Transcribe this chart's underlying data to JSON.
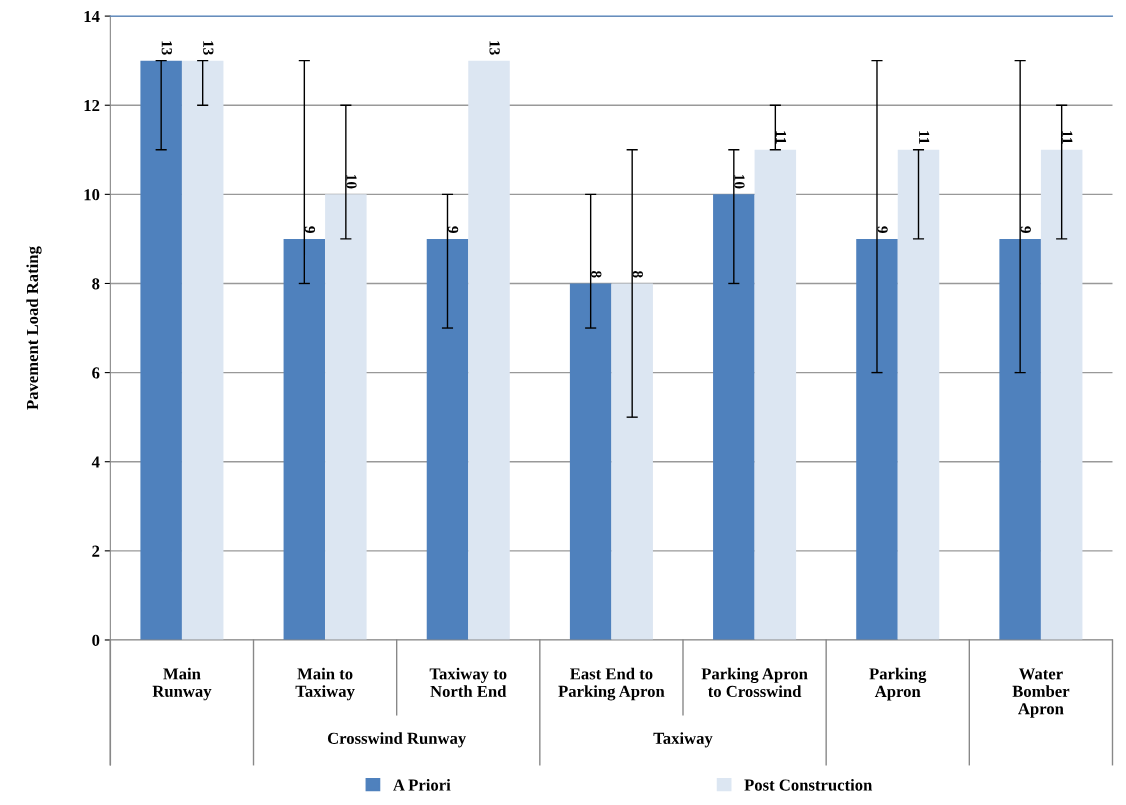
{
  "chart_data": {
    "type": "bar",
    "ylabel": "Pavement Load Rating",
    "categories": [
      "Main\nRunway",
      "Main to\nTaxiway",
      "Taxiway to\nNorth End",
      "East End to\nParking Apron",
      "Parking Apron\nto Crosswind",
      "Parking\nApron",
      "Water\nBomber\nApron"
    ],
    "series": [
      {
        "name": "A Priori",
        "color": "#4f81bd",
        "values": [
          13,
          9,
          9,
          8,
          10,
          9,
          9
        ],
        "errors": [
          [
            11,
            13
          ],
          [
            8,
            13
          ],
          [
            7,
            10
          ],
          [
            7,
            10
          ],
          [
            8,
            11
          ],
          [
            6,
            13
          ],
          [
            6,
            13
          ]
        ]
      },
      {
        "name": "Post Construction",
        "color": "#dce6f2",
        "values": [
          13,
          10,
          13,
          8,
          11,
          11,
          11
        ],
        "errors": [
          [
            12,
            13
          ],
          [
            9,
            12
          ],
          null,
          [
            5,
            11
          ],
          [
            11,
            12
          ],
          [
            9,
            11
          ],
          [
            9,
            12
          ]
        ]
      }
    ],
    "annotations": [
      "Crosswind Runway",
      "Taxiway"
    ],
    "ylim": [
      0,
      14
    ],
    "yticks": [
      0,
      2,
      4,
      6,
      8,
      10,
      12,
      14
    ],
    "grid": "y",
    "legend": "bottom",
    "data_labels": true
  }
}
